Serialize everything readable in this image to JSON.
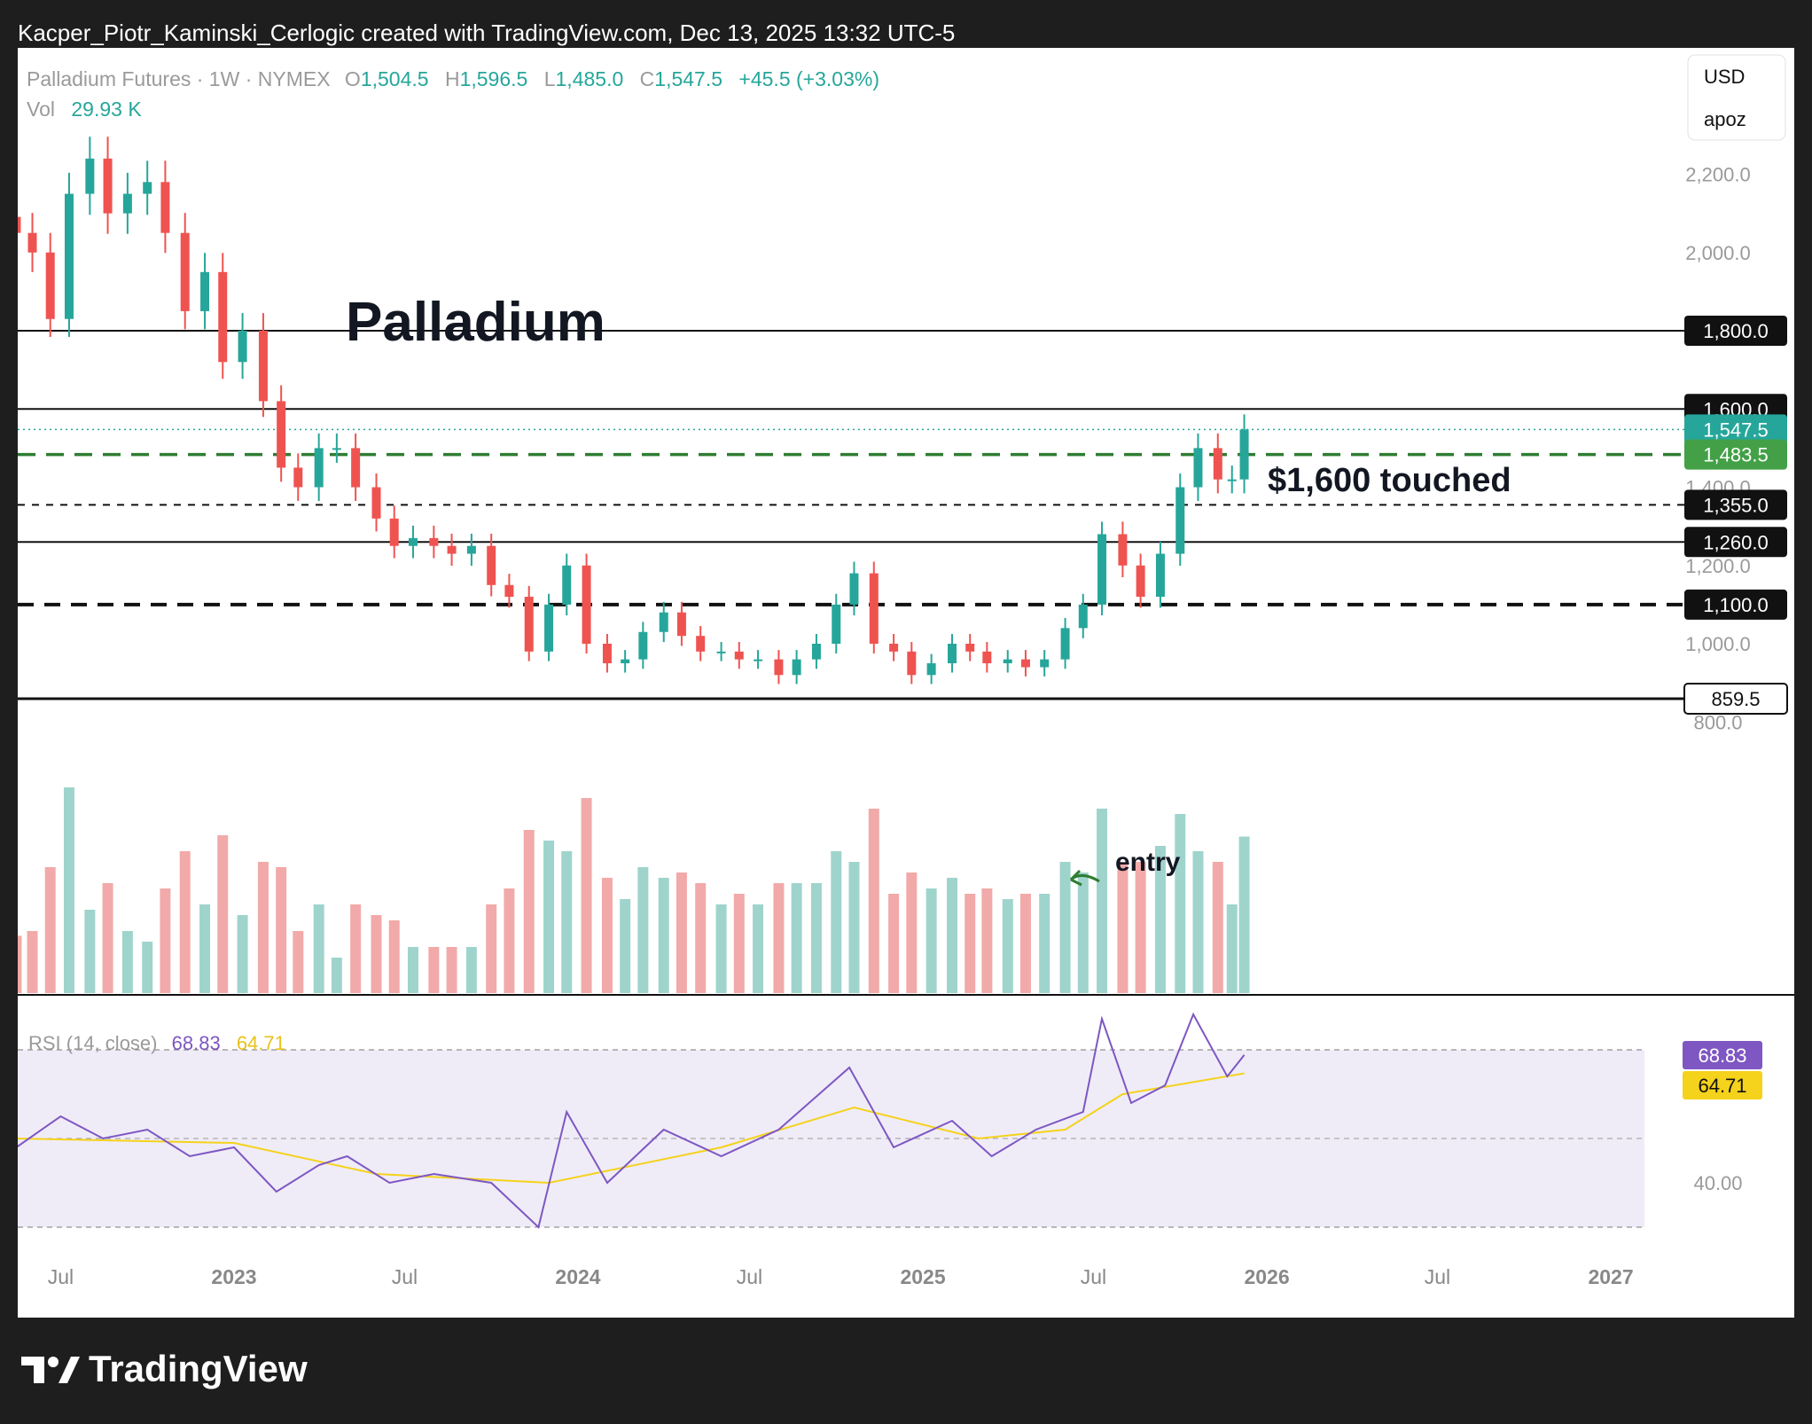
{
  "header": {
    "attribution": "Kacper_Piotr_Kaminski_Cerlogic created with TradingView.com, Dec 13, 2025 13:32 UTC-5"
  },
  "legend": {
    "symbol": "Palladium Futures · 1W · NYMEX",
    "o_label": "O",
    "o_value": "1,504.5",
    "h_label": "H",
    "h_value": "1,596.5",
    "l_label": "L",
    "l_value": "1,485.0",
    "c_label": "C",
    "c_value": "1,547.5",
    "change": "+45.5 (+3.03%)",
    "vol_label": "Vol",
    "vol_value": "29.93 K"
  },
  "scale_box": {
    "currency": "USD",
    "user": "apoz"
  },
  "annotations": {
    "title": "Palladium",
    "touched": "$1,600 touched",
    "entry": "entry"
  },
  "rsi": {
    "label": "RSI (14, close)",
    "value": "68.83",
    "ma": "64.71",
    "value_color": "#7e57c2",
    "ma_color": "#f5d21b"
  },
  "colors": {
    "up": "#26a69a",
    "down": "#ef5350",
    "up_vol": "#9fd4cd",
    "down_vol": "#f1aaa9",
    "support": "#2e7d32",
    "rsi_bg": "#efecf8"
  },
  "brand": {
    "name": "TradingView"
  },
  "chart_data": {
    "type": "candlestick",
    "title": "Palladium",
    "y_ticks": [
      800,
      1000,
      1200,
      1400,
      2000,
      2200
    ],
    "y_tick_labels": [
      "800.0",
      "1,000.0",
      "1,200.0",
      "1,400.0",
      "2,000.0",
      "2,200.0"
    ],
    "x_tick_labels": [
      {
        "label": "Jul",
        "date": "2022-07-01",
        "bold": false
      },
      {
        "label": "2023",
        "date": "2023-01-01",
        "bold": true
      },
      {
        "label": "Jul",
        "date": "2023-07-01",
        "bold": false
      },
      {
        "label": "2024",
        "date": "2024-01-01",
        "bold": true
      },
      {
        "label": "Jul",
        "date": "2024-07-01",
        "bold": false
      },
      {
        "label": "2025",
        "date": "2025-01-01",
        "bold": true
      },
      {
        "label": "Jul",
        "date": "2025-07-01",
        "bold": false
      },
      {
        "label": "2026",
        "date": "2026-01-01",
        "bold": true
      },
      {
        "label": "Jul",
        "date": "2026-07-01",
        "bold": false
      },
      {
        "label": "2027",
        "date": "2027-01-01",
        "bold": true
      }
    ],
    "levels": [
      {
        "value": 1800,
        "label": "1,800.0",
        "style": "solid",
        "tag": "black"
      },
      {
        "value": 1600,
        "label": "1,600.0",
        "style": "solid",
        "tag": "black"
      },
      {
        "value": 1547.5,
        "label": "1,547.5",
        "style": "dotted",
        "tag": "teal"
      },
      {
        "value": 1483.5,
        "label": "1,483.5",
        "style": "dashed-green",
        "tag": "green"
      },
      {
        "value": 1355,
        "label": "1,355.0",
        "style": "dashed",
        "tag": "black"
      },
      {
        "value": 1260,
        "label": "1,260.0",
        "style": "solid",
        "tag": "black"
      },
      {
        "value": 1100,
        "label": "1,100.0",
        "style": "dashed-bold",
        "tag": "black"
      },
      {
        "value": 859.5,
        "label": "859.5",
        "style": "solid-bold",
        "tag": "black-outline"
      }
    ],
    "candles": [
      {
        "date": "2022-05-15",
        "close": 2050
      },
      {
        "date": "2022-06-01",
        "close": 2000
      },
      {
        "date": "2022-06-20",
        "close": 1830
      },
      {
        "date": "2022-07-10",
        "close": 2150
      },
      {
        "date": "2022-08-01",
        "close": 2240
      },
      {
        "date": "2022-08-20",
        "close": 2100
      },
      {
        "date": "2022-09-10",
        "close": 2150
      },
      {
        "date": "2022-10-01",
        "close": 2180
      },
      {
        "date": "2022-10-20",
        "close": 2050
      },
      {
        "date": "2022-11-10",
        "close": 1850
      },
      {
        "date": "2022-12-01",
        "close": 1950
      },
      {
        "date": "2022-12-20",
        "close": 1720
      },
      {
        "date": "2023-01-10",
        "close": 1800
      },
      {
        "date": "2023-02-01",
        "close": 1620
      },
      {
        "date": "2023-02-20",
        "close": 1450
      },
      {
        "date": "2023-03-10",
        "close": 1400
      },
      {
        "date": "2023-04-01",
        "close": 1500
      },
      {
        "date": "2023-04-20",
        "close": 1500
      },
      {
        "date": "2023-05-10",
        "close": 1400
      },
      {
        "date": "2023-06-01",
        "close": 1320
      },
      {
        "date": "2023-06-20",
        "close": 1250
      },
      {
        "date": "2023-07-10",
        "close": 1270
      },
      {
        "date": "2023-08-01",
        "close": 1250
      },
      {
        "date": "2023-08-20",
        "close": 1230
      },
      {
        "date": "2023-09-10",
        "close": 1250
      },
      {
        "date": "2023-10-01",
        "close": 1150
      },
      {
        "date": "2023-10-20",
        "close": 1120
      },
      {
        "date": "2023-11-10",
        "close": 980
      },
      {
        "date": "2023-12-01",
        "close": 1100
      },
      {
        "date": "2023-12-20",
        "close": 1200
      },
      {
        "date": "2024-01-10",
        "close": 1000
      },
      {
        "date": "2024-02-01",
        "close": 950
      },
      {
        "date": "2024-02-20",
        "close": 960
      },
      {
        "date": "2024-03-10",
        "close": 1030
      },
      {
        "date": "2024-04-01",
        "close": 1080
      },
      {
        "date": "2024-04-20",
        "close": 1020
      },
      {
        "date": "2024-05-10",
        "close": 980
      },
      {
        "date": "2024-06-01",
        "close": 980
      },
      {
        "date": "2024-06-20",
        "close": 960
      },
      {
        "date": "2024-07-10",
        "close": 960
      },
      {
        "date": "2024-08-01",
        "close": 920
      },
      {
        "date": "2024-08-20",
        "close": 960
      },
      {
        "date": "2024-09-10",
        "close": 1000
      },
      {
        "date": "2024-10-01",
        "close": 1100
      },
      {
        "date": "2024-10-20",
        "close": 1180
      },
      {
        "date": "2024-11-10",
        "close": 1000
      },
      {
        "date": "2024-12-01",
        "close": 980
      },
      {
        "date": "2024-12-20",
        "close": 920
      },
      {
        "date": "2025-01-10",
        "close": 950
      },
      {
        "date": "2025-02-01",
        "close": 1000
      },
      {
        "date": "2025-02-20",
        "close": 980
      },
      {
        "date": "2025-03-10",
        "close": 950
      },
      {
        "date": "2025-04-01",
        "close": 960
      },
      {
        "date": "2025-04-20",
        "close": 940
      },
      {
        "date": "2025-05-10",
        "close": 960
      },
      {
        "date": "2025-06-01",
        "close": 1040
      },
      {
        "date": "2025-06-20",
        "close": 1100
      },
      {
        "date": "2025-07-10",
        "close": 1280
      },
      {
        "date": "2025-08-01",
        "close": 1200
      },
      {
        "date": "2025-08-20",
        "close": 1120
      },
      {
        "date": "2025-09-10",
        "close": 1230
      },
      {
        "date": "2025-10-01",
        "close": 1400
      },
      {
        "date": "2025-10-20",
        "close": 1500
      },
      {
        "date": "2025-11-10",
        "close": 1420
      },
      {
        "date": "2025-11-25",
        "close": 1420
      },
      {
        "date": "2025-12-08",
        "close": 1547.5
      }
    ],
    "rsi_ticks": [
      40
    ],
    "rsi_tick_labels": [
      "40.00"
    ],
    "rsi_series": [
      {
        "date": "2022-05-15",
        "rsi": 48
      },
      {
        "date": "2022-07-01",
        "rsi": 55
      },
      {
        "date": "2022-08-15",
        "rsi": 50
      },
      {
        "date": "2022-10-01",
        "rsi": 52
      },
      {
        "date": "2022-11-15",
        "rsi": 46
      },
      {
        "date": "2023-01-01",
        "rsi": 48
      },
      {
        "date": "2023-02-15",
        "rsi": 38
      },
      {
        "date": "2023-04-01",
        "rsi": 44
      },
      {
        "date": "2023-05-01",
        "rsi": 46
      },
      {
        "date": "2023-06-15",
        "rsi": 40
      },
      {
        "date": "2023-08-01",
        "rsi": 42
      },
      {
        "date": "2023-10-01",
        "rsi": 40
      },
      {
        "date": "2023-11-20",
        "rsi": 30
      },
      {
        "date": "2023-12-20",
        "rsi": 56
      },
      {
        "date": "2024-02-01",
        "rsi": 40
      },
      {
        "date": "2024-04-01",
        "rsi": 52
      },
      {
        "date": "2024-06-01",
        "rsi": 46
      },
      {
        "date": "2024-08-01",
        "rsi": 52
      },
      {
        "date": "2024-10-15",
        "rsi": 66
      },
      {
        "date": "2024-12-01",
        "rsi": 48
      },
      {
        "date": "2025-02-01",
        "rsi": 54
      },
      {
        "date": "2025-03-15",
        "rsi": 46
      },
      {
        "date": "2025-05-01",
        "rsi": 52
      },
      {
        "date": "2025-06-20",
        "rsi": 56
      },
      {
        "date": "2025-07-10",
        "rsi": 77
      },
      {
        "date": "2025-08-10",
        "rsi": 58
      },
      {
        "date": "2025-09-15",
        "rsi": 62
      },
      {
        "date": "2025-10-15",
        "rsi": 78
      },
      {
        "date": "2025-11-20",
        "rsi": 64
      },
      {
        "date": "2025-12-08",
        "rsi": 68.83
      }
    ],
    "rsi_ma_series": [
      {
        "date": "2022-05-15",
        "ma": 50
      },
      {
        "date": "2023-01-01",
        "ma": 49
      },
      {
        "date": "2023-06-01",
        "ma": 42
      },
      {
        "date": "2023-12-01",
        "ma": 40
      },
      {
        "date": "2024-06-01",
        "ma": 48
      },
      {
        "date": "2024-10-20",
        "ma": 57
      },
      {
        "date": "2025-03-01",
        "ma": 50
      },
      {
        "date": "2025-06-01",
        "ma": 52
      },
      {
        "date": "2025-08-01",
        "ma": 60
      },
      {
        "date": "2025-12-08",
        "ma": 64.71
      }
    ]
  }
}
